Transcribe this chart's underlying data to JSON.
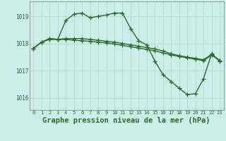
{
  "bg_color": "#cceee8",
  "grid_color": "#b5ddd5",
  "line_color": "#2d6a2d",
  "marker": "+",
  "markersize": 4,
  "linewidth": 1.0,
  "xlabel": "Graphe pression niveau de la mer (hPa)",
  "xlabel_fontsize": 7.5,
  "ylim": [
    1015.55,
    1019.55
  ],
  "xlim": [
    -0.5,
    23.5
  ],
  "yticks": [
    1016,
    1017,
    1018,
    1019
  ],
  "xticks": [
    0,
    1,
    2,
    3,
    4,
    5,
    6,
    7,
    8,
    9,
    10,
    11,
    12,
    13,
    14,
    15,
    16,
    17,
    18,
    19,
    20,
    21,
    22,
    23
  ],
  "line1": [
    1017.82,
    1018.05,
    1018.15,
    1018.15,
    1018.85,
    1019.08,
    1019.12,
    1018.95,
    1019.0,
    1019.05,
    1019.12,
    1019.12,
    1018.55,
    1018.1,
    1017.95,
    1017.35,
    1016.85,
    1016.6,
    1016.35,
    1016.12,
    1016.15,
    1016.7,
    1017.62,
    1017.35
  ],
  "line2": [
    1017.82,
    1018.05,
    1018.18,
    1018.15,
    1018.18,
    1018.18,
    1018.18,
    1018.15,
    1018.12,
    1018.08,
    1018.05,
    1018.0,
    1017.95,
    1017.9,
    1017.85,
    1017.8,
    1017.72,
    1017.62,
    1017.55,
    1017.5,
    1017.45,
    1017.4,
    1017.6,
    1017.38
  ],
  "line3": [
    1017.82,
    1018.05,
    1018.18,
    1018.15,
    1018.15,
    1018.12,
    1018.1,
    1018.08,
    1018.05,
    1018.02,
    1017.98,
    1017.93,
    1017.88,
    1017.83,
    1017.78,
    1017.73,
    1017.65,
    1017.58,
    1017.52,
    1017.47,
    1017.42,
    1017.37,
    1017.57,
    1017.37
  ]
}
